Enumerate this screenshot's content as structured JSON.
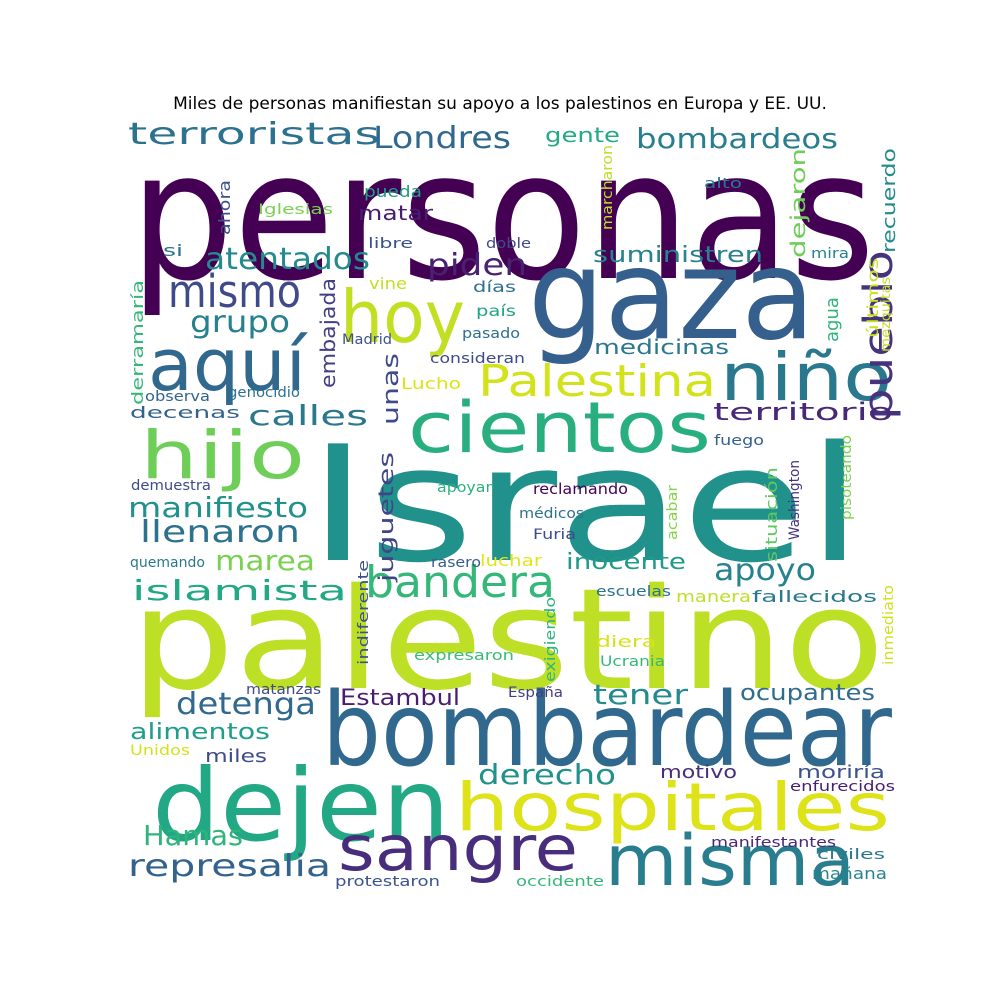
{
  "title": "Miles de personas manifiestan su apoyo a los palestinos en Europa y EE. UU.",
  "words": [
    {
      "text": "personas",
      "color": "#440154"
    },
    {
      "text": "Israel",
      "color": "#21918c"
    },
    {
      "text": "palestino",
      "color": "#bddf26"
    },
    {
      "text": "gaza",
      "color": "#355f8d"
    },
    {
      "text": "bombardear",
      "color": "#31688e"
    },
    {
      "text": "dejen",
      "color": "#22a884"
    },
    {
      "text": "hospitales",
      "color": "#dde318"
    },
    {
      "text": "misma",
      "color": "#287d8e"
    },
    {
      "text": "sangre",
      "color": "#472d7b"
    },
    {
      "text": "cientos",
      "color": "#29af7f"
    },
    {
      "text": "aquí",
      "color": "#31688e"
    },
    {
      "text": "hoy",
      "color": "#c2df23"
    },
    {
      "text": "niño",
      "color": "#2a788e"
    },
    {
      "text": "hijo",
      "color": "#6ece58"
    },
    {
      "text": "mismo",
      "color": "#3e4a89"
    },
    {
      "text": "Palestina",
      "color": "#d2e21b"
    },
    {
      "text": "bandera",
      "color": "#35b779"
    },
    {
      "text": "pueblo",
      "color": "#46337e"
    },
    {
      "text": "Londres",
      "color": "#31688e"
    },
    {
      "text": "terroristas",
      "color": "#2c728e"
    },
    {
      "text": "bombardeos",
      "color": "#287d8e"
    },
    {
      "text": "atentados",
      "color": "#238a8d"
    },
    {
      "text": "piden",
      "color": "#482173"
    },
    {
      "text": "grupo",
      "color": "#27808e"
    },
    {
      "text": "islamista",
      "color": "#22a884"
    },
    {
      "text": "calles",
      "color": "#2a788e"
    },
    {
      "text": "manifiesto",
      "color": "#21918c"
    },
    {
      "text": "llenaron",
      "color": "#2c728e"
    },
    {
      "text": "marea",
      "color": "#7ad151"
    },
    {
      "text": "apoyo",
      "color": "#26828e"
    },
    {
      "text": "tener",
      "color": "#238a8d"
    },
    {
      "text": "detenga",
      "color": "#31688e"
    },
    {
      "text": "derecho",
      "color": "#21918c"
    },
    {
      "text": "Hamas",
      "color": "#2fb47c"
    },
    {
      "text": "represalia",
      "color": "#33638d"
    },
    {
      "text": "territorio",
      "color": "#482878"
    },
    {
      "text": "ocupantes",
      "color": "#2f6c8e"
    },
    {
      "text": "inocente",
      "color": "#1e9b8a"
    },
    {
      "text": "alimentos",
      "color": "#1f9e89"
    },
    {
      "text": "Estambul",
      "color": "#481f70"
    },
    {
      "text": "suministren",
      "color": "#26828e"
    },
    {
      "text": "medicinas",
      "color": "#2a788e"
    },
    {
      "text": "matar",
      "color": "#481f70"
    },
    {
      "text": "gente",
      "color": "#25ab82"
    },
    {
      "text": "unas",
      "color": "#3e4a89"
    },
    {
      "text": "juguetes",
      "color": "#414487"
    },
    {
      "text": "embajada",
      "color": "#433e85"
    },
    {
      "text": "dejaron",
      "color": "#6ece58"
    },
    {
      "text": "recuerdo",
      "color": "#238a8d"
    },
    {
      "text": "agua",
      "color": "#2fb47c"
    },
    {
      "text": "motivo",
      "color": "#472d7b"
    },
    {
      "text": "moriría",
      "color": "#3b528b"
    },
    {
      "text": "miles",
      "color": "#3e4a89"
    },
    {
      "text": "mañana",
      "color": "#25848e"
    },
    {
      "text": "derramaría",
      "color": "#35b779"
    },
    {
      "text": "ahora",
      "color": "#3b528b"
    },
    {
      "text": "situación",
      "color": "#5ec962"
    },
    {
      "text": "manera",
      "color": "#bddf26"
    },
    {
      "text": "fallecidos",
      "color": "#2a788e"
    },
    {
      "text": "luchar",
      "color": "#e5e419"
    },
    {
      "text": "pueda",
      "color": "#1f9e89"
    },
    {
      "text": "Lucho",
      "color": "#dde318"
    },
    {
      "text": "vine",
      "color": "#c2df23"
    },
    {
      "text": "diera",
      "color": "#d8e219"
    },
    {
      "text": "decenas",
      "color": "#33638d"
    },
    {
      "text": "últimos",
      "color": "#c8e020"
    },
    {
      "text": "días",
      "color": "#2d708e"
    },
    {
      "text": "país",
      "color": "#20a386"
    },
    {
      "text": "reclamando",
      "color": "#440154"
    },
    {
      "text": "quemando",
      "color": "#2a788e"
    },
    {
      "text": "escuelas",
      "color": "#2c728e"
    },
    {
      "text": "Ucrania",
      "color": "#35b779"
    },
    {
      "text": "expresaron",
      "color": "#3bbb75"
    },
    {
      "text": "exigiendo",
      "color": "#2fb47c"
    },
    {
      "text": "indiferente",
      "color": "#3b528b"
    },
    {
      "text": "inmediato",
      "color": "#d0e11c"
    },
    {
      "text": "médicos",
      "color": "#2c728e"
    },
    {
      "text": "Furia",
      "color": "#3e4a89"
    },
    {
      "text": "acabar",
      "color": "#84d44b"
    },
    {
      "text": "Washington",
      "color": "#46327e"
    },
    {
      "text": "pisoteando",
      "color": "#7ad151"
    },
    {
      "text": "apoyar",
      "color": "#2db27d"
    },
    {
      "text": "demuestra",
      "color": "#3e4a89"
    },
    {
      "text": "rasero",
      "color": "#355f8d"
    },
    {
      "text": "fuego",
      "color": "#355f8d"
    },
    {
      "text": "consideran",
      "color": "#3e4a89"
    },
    {
      "text": "pasado",
      "color": "#2d708e"
    },
    {
      "text": "Madrid",
      "color": "#3b528b"
    },
    {
      "text": "observa",
      "color": "#33638d"
    },
    {
      "text": "genocidio",
      "color": "#2c728e"
    },
    {
      "text": "doble",
      "color": "#3e4a89"
    },
    {
      "text": "libre",
      "color": "#3b528b"
    },
    {
      "text": "si",
      "color": "#2c728e"
    },
    {
      "text": "Iglesias",
      "color": "#7ad151"
    },
    {
      "text": "marcharon",
      "color": "#bddf26"
    },
    {
      "text": "alto",
      "color": "#2a788e"
    },
    {
      "text": "mira",
      "color": "#26828e"
    },
    {
      "text": "mezquitas",
      "color": "#c2df23"
    },
    {
      "text": "matanzas",
      "color": "#3e4a89"
    },
    {
      "text": "España",
      "color": "#433e85"
    },
    {
      "text": "Unidos",
      "color": "#d2e21b"
    },
    {
      "text": "manifestantes",
      "color": "#482878"
    },
    {
      "text": "civiles",
      "color": "#2a788e"
    },
    {
      "text": "enfurecidos",
      "color": "#481f70"
    },
    {
      "text": "protestaron",
      "color": "#3b528b"
    },
    {
      "text": "occidente",
      "color": "#35b779"
    }
  ]
}
